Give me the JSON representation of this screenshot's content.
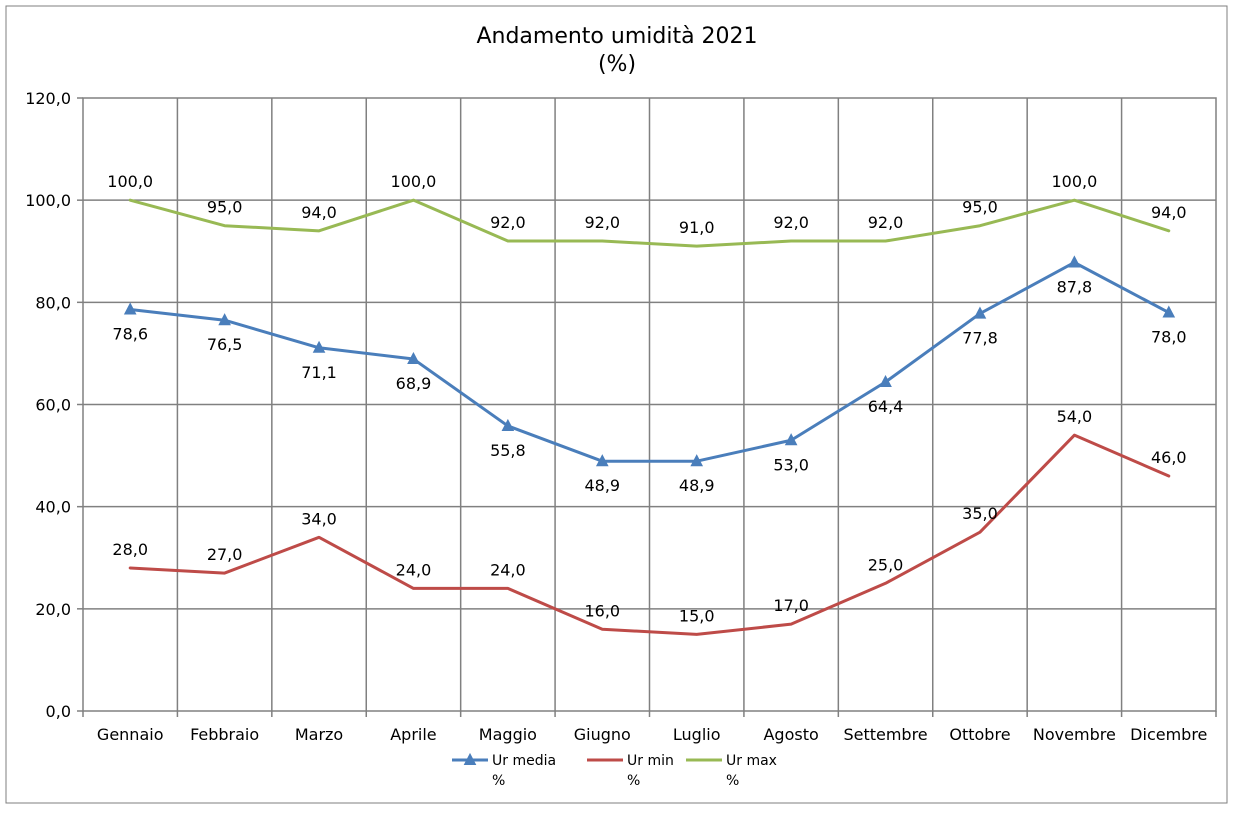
{
  "chart_data": {
    "type": "line",
    "title": "Andamento umidità 2021",
    "subtitle": "(%)",
    "categories": [
      "Gennaio",
      "Febbraio",
      "Marzo",
      "Aprile",
      "Maggio",
      "Giugno",
      "Luglio",
      "Agosto",
      "Settembre",
      "Ottobre",
      "Novembre",
      "Dicembre"
    ],
    "ylim": [
      0,
      120
    ],
    "y_ticks": [
      "0,0",
      "20,0",
      "40,0",
      "60,0",
      "80,0",
      "100,0",
      "120,0"
    ],
    "y_tick_values": [
      0,
      20,
      40,
      60,
      80,
      100,
      120
    ],
    "grid": true,
    "legend_position": "bottom",
    "series": [
      {
        "name_line1": "Ur media",
        "name_line2": "%",
        "color": "#4a7ebb",
        "marker": "triangle",
        "values": [
          78.6,
          76.5,
          71.1,
          68.9,
          55.8,
          48.9,
          48.9,
          53.0,
          64.4,
          77.8,
          87.8,
          78.0
        ],
        "labels": [
          "78,6",
          "76,5",
          "71,1",
          "68,9",
          "55,8",
          "48,9",
          "48,9",
          "53,0",
          "64,4",
          "77,8",
          "87,8",
          "78,0"
        ],
        "label_position": "below"
      },
      {
        "name_line1": "Ur min",
        "name_line2": "%",
        "color": "#be4b48",
        "marker": "none",
        "values": [
          28,
          27,
          34,
          24,
          24,
          16,
          15,
          17,
          25,
          35,
          54,
          46
        ],
        "labels": [
          "28,0",
          "27,0",
          "34,0",
          "24,0",
          "24,0",
          "16,0",
          "15,0",
          "17,0",
          "25,0",
          "35,0",
          "54,0",
          "46,0"
        ],
        "label_position": "above"
      },
      {
        "name_line1": "Ur max",
        "name_line2": "%",
        "color": "#98b954",
        "marker": "none",
        "values": [
          100,
          95,
          94,
          100,
          92,
          92,
          91,
          92,
          92,
          95,
          100,
          94
        ],
        "labels": [
          "100,0",
          "95,0",
          "94,0",
          "100,0",
          "92,0",
          "92,0",
          "91,0",
          "92,0",
          "92,0",
          "95,0",
          "100,0",
          "94,0"
        ],
        "label_position": "above"
      }
    ]
  }
}
